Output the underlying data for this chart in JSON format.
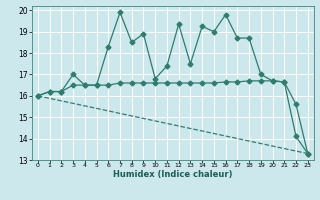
{
  "xlabel": "Humidex (Indice chaleur)",
  "bg_color": "#cce8ed",
  "grid_color": "#ffffff",
  "line_color": "#2e7d6e",
  "xlim": [
    -0.5,
    23.5
  ],
  "ylim": [
    13,
    20.2
  ],
  "xticks": [
    0,
    1,
    2,
    3,
    4,
    5,
    6,
    7,
    8,
    9,
    10,
    11,
    12,
    13,
    14,
    15,
    16,
    17,
    18,
    19,
    20,
    21,
    22,
    23
  ],
  "yticks": [
    13,
    14,
    15,
    16,
    17,
    18,
    19,
    20
  ],
  "line1_x": [
    0,
    1,
    2,
    3,
    4,
    5,
    6,
    7,
    8,
    9,
    10,
    11,
    12,
    13,
    14,
    15,
    16,
    17,
    18,
    19,
    20,
    21,
    22,
    23
  ],
  "line1_y": [
    16.0,
    16.2,
    16.2,
    16.5,
    16.5,
    16.5,
    16.5,
    16.6,
    16.6,
    16.6,
    16.6,
    16.6,
    16.6,
    16.6,
    16.6,
    16.6,
    16.65,
    16.65,
    16.7,
    16.7,
    16.7,
    16.65,
    15.6,
    13.3
  ],
  "line2_x": [
    0,
    1,
    2,
    3,
    4,
    5,
    6,
    7,
    8,
    9,
    10,
    11,
    12,
    13,
    14,
    15,
    16,
    17,
    18,
    19,
    20,
    21,
    22,
    23
  ],
  "line2_y": [
    16.0,
    16.2,
    16.2,
    17.0,
    16.5,
    16.5,
    18.3,
    19.9,
    18.5,
    18.9,
    16.8,
    17.4,
    19.35,
    17.5,
    19.25,
    19.0,
    19.8,
    18.7,
    18.7,
    17.0,
    16.7,
    16.65,
    14.1,
    13.3
  ],
  "line3_x": [
    0,
    23
  ],
  "line3_y": [
    16.0,
    13.3
  ],
  "markersize": 2.5,
  "linewidth": 0.9
}
